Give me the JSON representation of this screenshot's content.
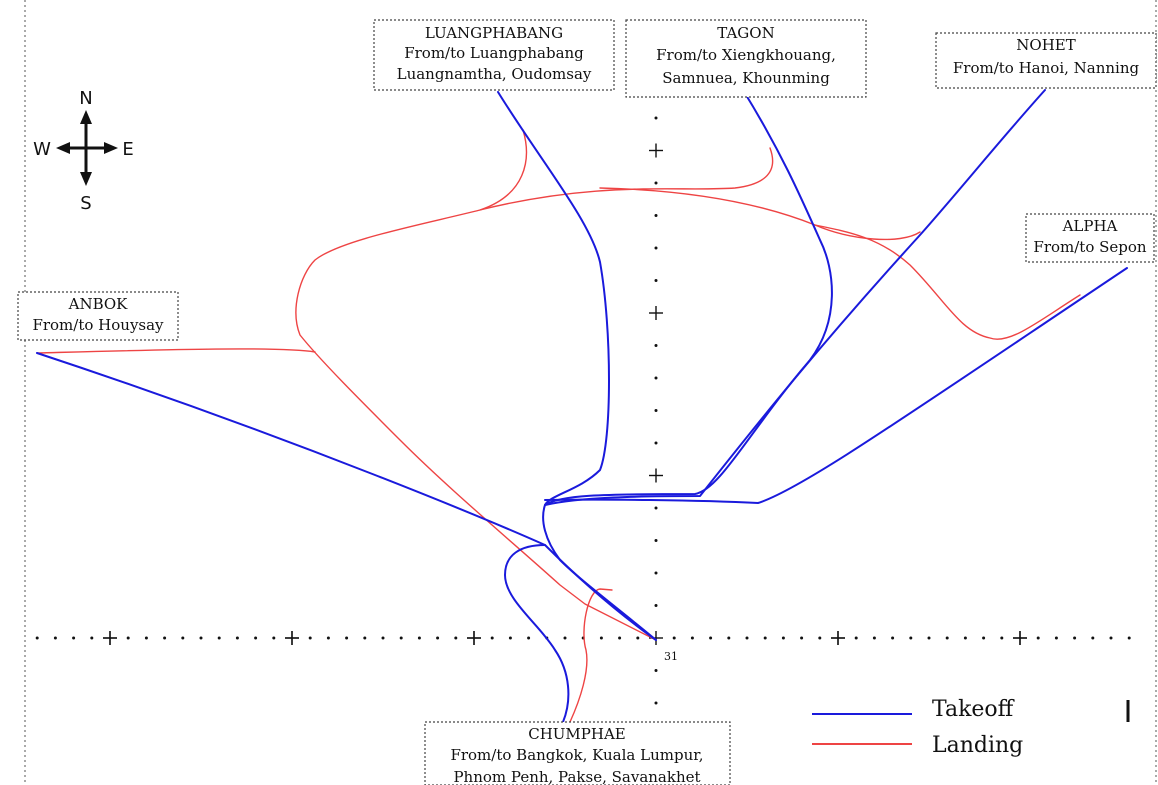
{
  "compass": {
    "north": "N",
    "south": "S",
    "east": "E",
    "west": "W"
  },
  "runway": {
    "label": "31"
  },
  "waypoints": [
    {
      "id": "luangphabang",
      "name": "LUANGPHABANG",
      "lines": [
        "From/to Luangphabang",
        "Luangnamtha, Oudomsay"
      ]
    },
    {
      "id": "tagon",
      "name": "TAGON",
      "lines": [
        "From/to Xiengkhouang,",
        "Samnuea, Khounming"
      ]
    },
    {
      "id": "nohet",
      "name": "NOHET",
      "lines": [
        "From/to Hanoi, Nanning"
      ]
    },
    {
      "id": "alpha",
      "name": "ALPHA",
      "lines": [
        "From/to Sepon"
      ]
    },
    {
      "id": "anbok",
      "name": "ANBOK",
      "lines": [
        "From/to Houysay"
      ]
    },
    {
      "id": "chumphae",
      "name": "CHUMPHAE",
      "lines": [
        "From/to Bangkok, Kuala Lumpur,",
        "Phnom Penh, Pakse, Savanakhet"
      ]
    }
  ],
  "legend": {
    "items": [
      {
        "label": "Takeoff",
        "color": "#1a1adc"
      },
      {
        "label": "Landing",
        "color": "#ee4444"
      }
    ]
  },
  "colors": {
    "takeoff": "#1a1adc",
    "landing": "#ee4444"
  }
}
